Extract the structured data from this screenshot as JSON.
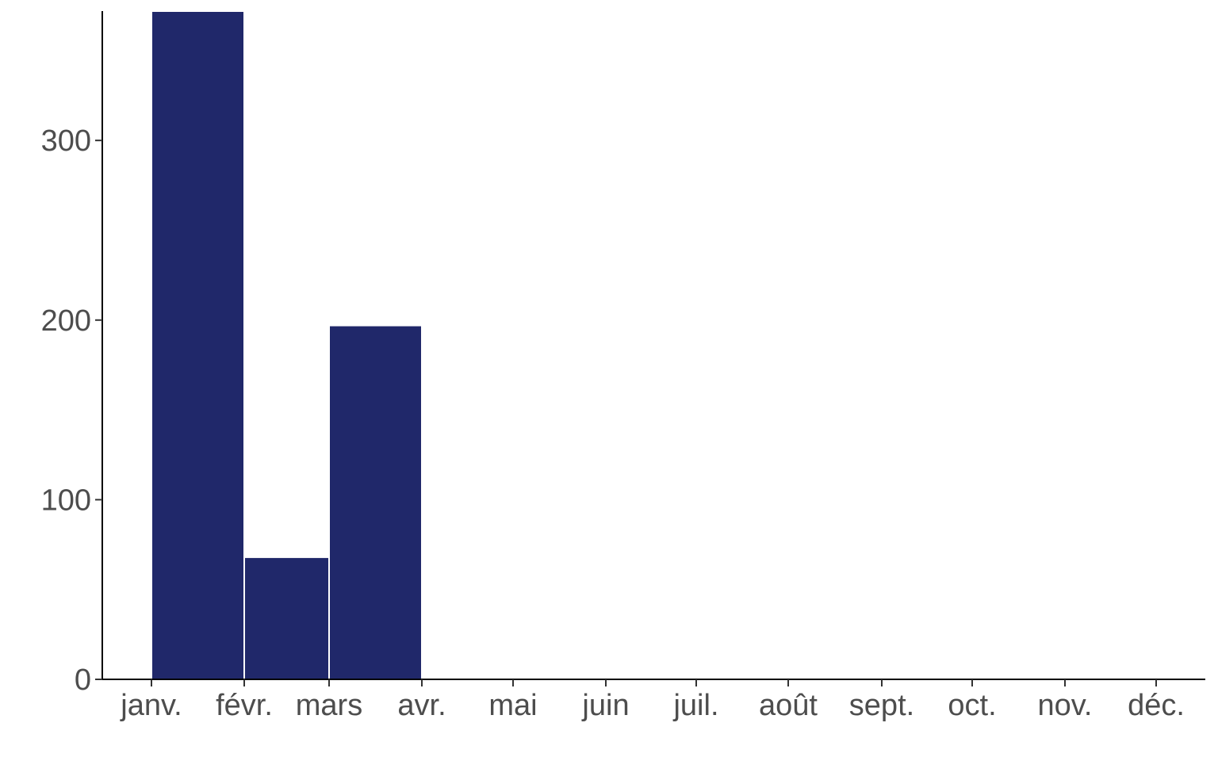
{
  "chart_data": {
    "type": "bar",
    "title": "",
    "xlabel": "",
    "ylabel": "",
    "bar_color": "#20286a",
    "x_tick_labels": [
      "janv.",
      "févr.",
      "mars",
      "avr.",
      "mai",
      "juin",
      "juil.",
      "août",
      "sept.",
      "oct.",
      "nov.",
      "déc."
    ],
    "y_ticks": [
      0,
      100,
      200,
      300
    ],
    "ylim": [
      0,
      372
    ],
    "grid": false,
    "legend": "none",
    "bins": [
      {
        "start": "janv.",
        "end": "févr.",
        "value": 372
      },
      {
        "start": "févr.",
        "end": "mars",
        "value": 68
      },
      {
        "start": "mars",
        "end": "avr.",
        "value": 197
      }
    ]
  }
}
